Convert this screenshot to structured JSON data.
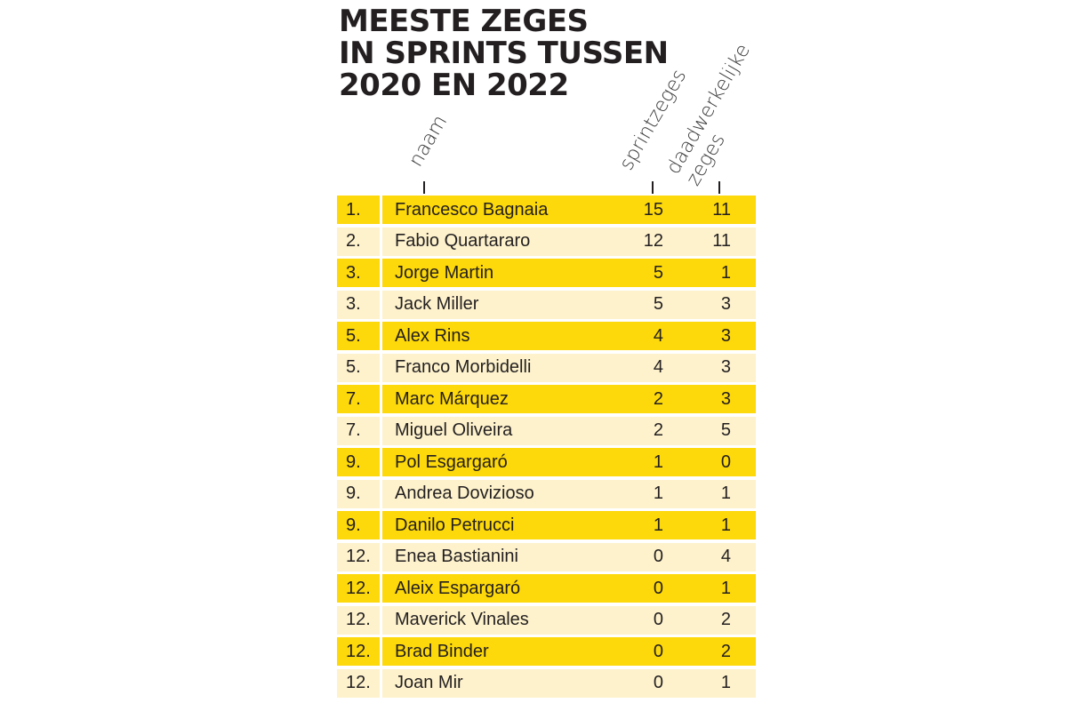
{
  "chart_data": {
    "type": "table",
    "title": "MEESTE ZEGES\nIN SPRINTS TUSSEN\n2020 EN 2022",
    "columns": [
      "naam",
      "sprintzeges",
      "daadwerkelijke\nzeges"
    ],
    "rows": [
      {
        "rank": "1.",
        "name": "Francesco Bagnaia",
        "sprint": 15,
        "actual": 11
      },
      {
        "rank": "2.",
        "name": "Fabio Quartararo",
        "sprint": 12,
        "actual": 11
      },
      {
        "rank": "3.",
        "name": "Jorge Martin",
        "sprint": 5,
        "actual": 1
      },
      {
        "rank": "3.",
        "name": "Jack Miller",
        "sprint": 5,
        "actual": 3
      },
      {
        "rank": "5.",
        "name": "Alex Rins",
        "sprint": 4,
        "actual": 3
      },
      {
        "rank": "5.",
        "name": "Franco Morbidelli",
        "sprint": 4,
        "actual": 3
      },
      {
        "rank": "7.",
        "name": "Marc Márquez",
        "sprint": 2,
        "actual": 3
      },
      {
        "rank": "7.",
        "name": "Miguel Oliveira",
        "sprint": 2,
        "actual": 5
      },
      {
        "rank": "9.",
        "name": "Pol Esgargaró",
        "sprint": 1,
        "actual": 0
      },
      {
        "rank": "9.",
        "name": "Andrea Dovizioso",
        "sprint": 1,
        "actual": 1
      },
      {
        "rank": "9.",
        "name": "Danilo Petrucci",
        "sprint": 1,
        "actual": 1
      },
      {
        "rank": "12.",
        "name": "Enea Bastianini",
        "sprint": 0,
        "actual": 4
      },
      {
        "rank": "12.",
        "name": "Aleix Espargaró",
        "sprint": 0,
        "actual": 1
      },
      {
        "rank": "12.",
        "name": "Maverick Vinales",
        "sprint": 0,
        "actual": 2
      },
      {
        "rank": "12.",
        "name": "Brad Binder",
        "sprint": 0,
        "actual": 2
      },
      {
        "rank": "12.",
        "name": "Joan Mir",
        "sprint": 0,
        "actual": 1
      }
    ]
  },
  "colors": {
    "row_dark": "#fdd80a",
    "row_light": "#fdf2cc",
    "text": "#231f20"
  }
}
